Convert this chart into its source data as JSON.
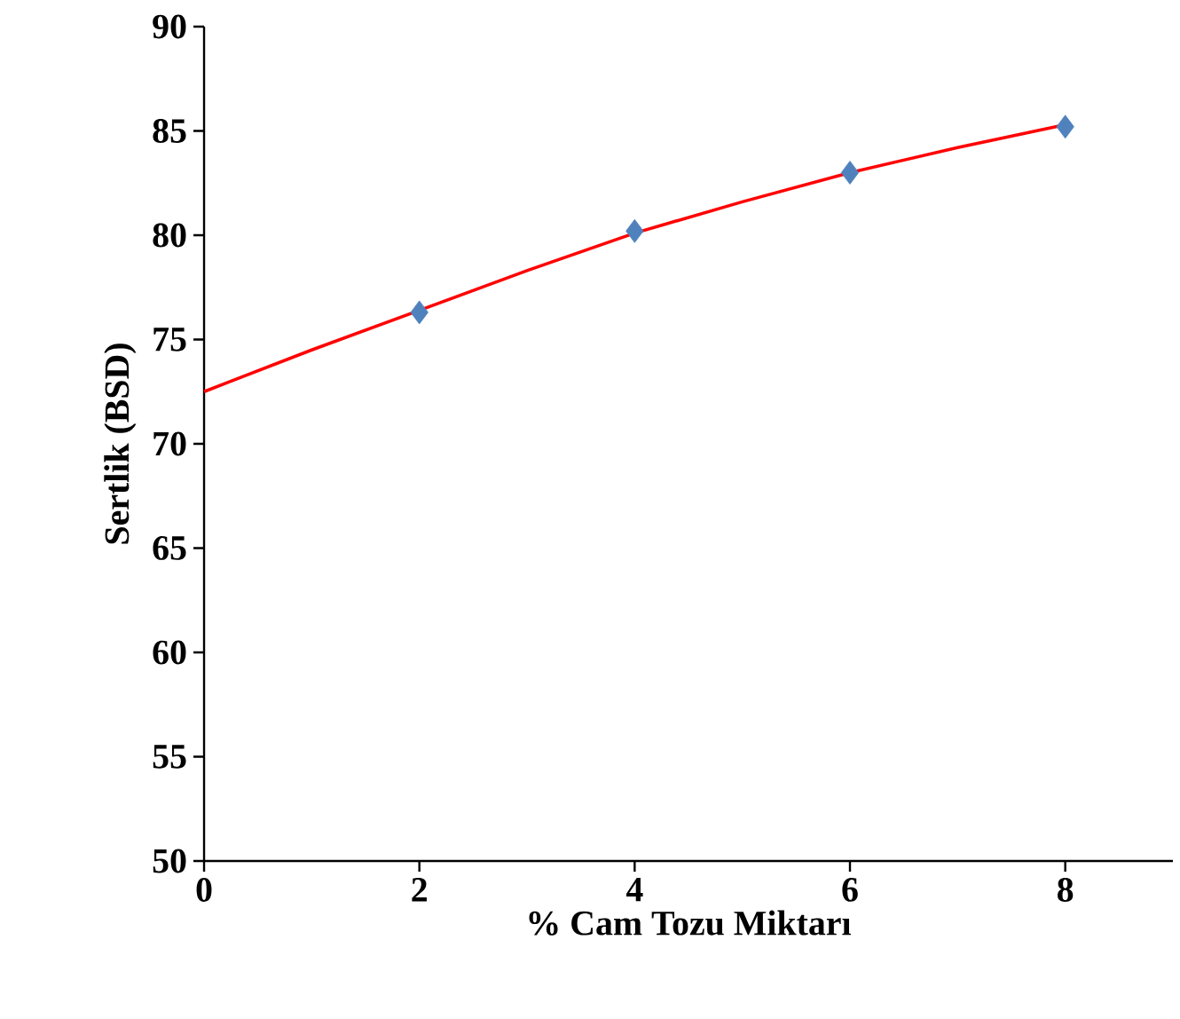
{
  "chart_data": {
    "type": "scatter",
    "xlabel": "% Cam Tozu Miktarı",
    "ylabel": "Sertlik (BSD)",
    "xlim": [
      0,
      9
    ],
    "xticks": [
      0,
      2,
      4,
      6,
      8
    ],
    "ylim": [
      50,
      90
    ],
    "yticks": [
      50,
      55,
      60,
      65,
      70,
      75,
      80,
      85,
      90
    ],
    "grid": false,
    "series": [
      {
        "color": "#4f81bd",
        "marker": "diamond",
        "x": [
          2,
          4,
          6,
          8
        ],
        "values": [
          76.3,
          80.2,
          83.0,
          85.2
        ]
      },
      {
        "type": "line",
        "color": "#ff0000",
        "marker": "none",
        "line_style": "solid",
        "x": [
          0,
          1,
          2,
          3,
          4,
          5,
          6,
          7,
          8
        ],
        "values": [
          72.5,
          74.5,
          76.4,
          78.3,
          80.1,
          81.6,
          83.0,
          84.2,
          85.3
        ]
      }
    ]
  }
}
